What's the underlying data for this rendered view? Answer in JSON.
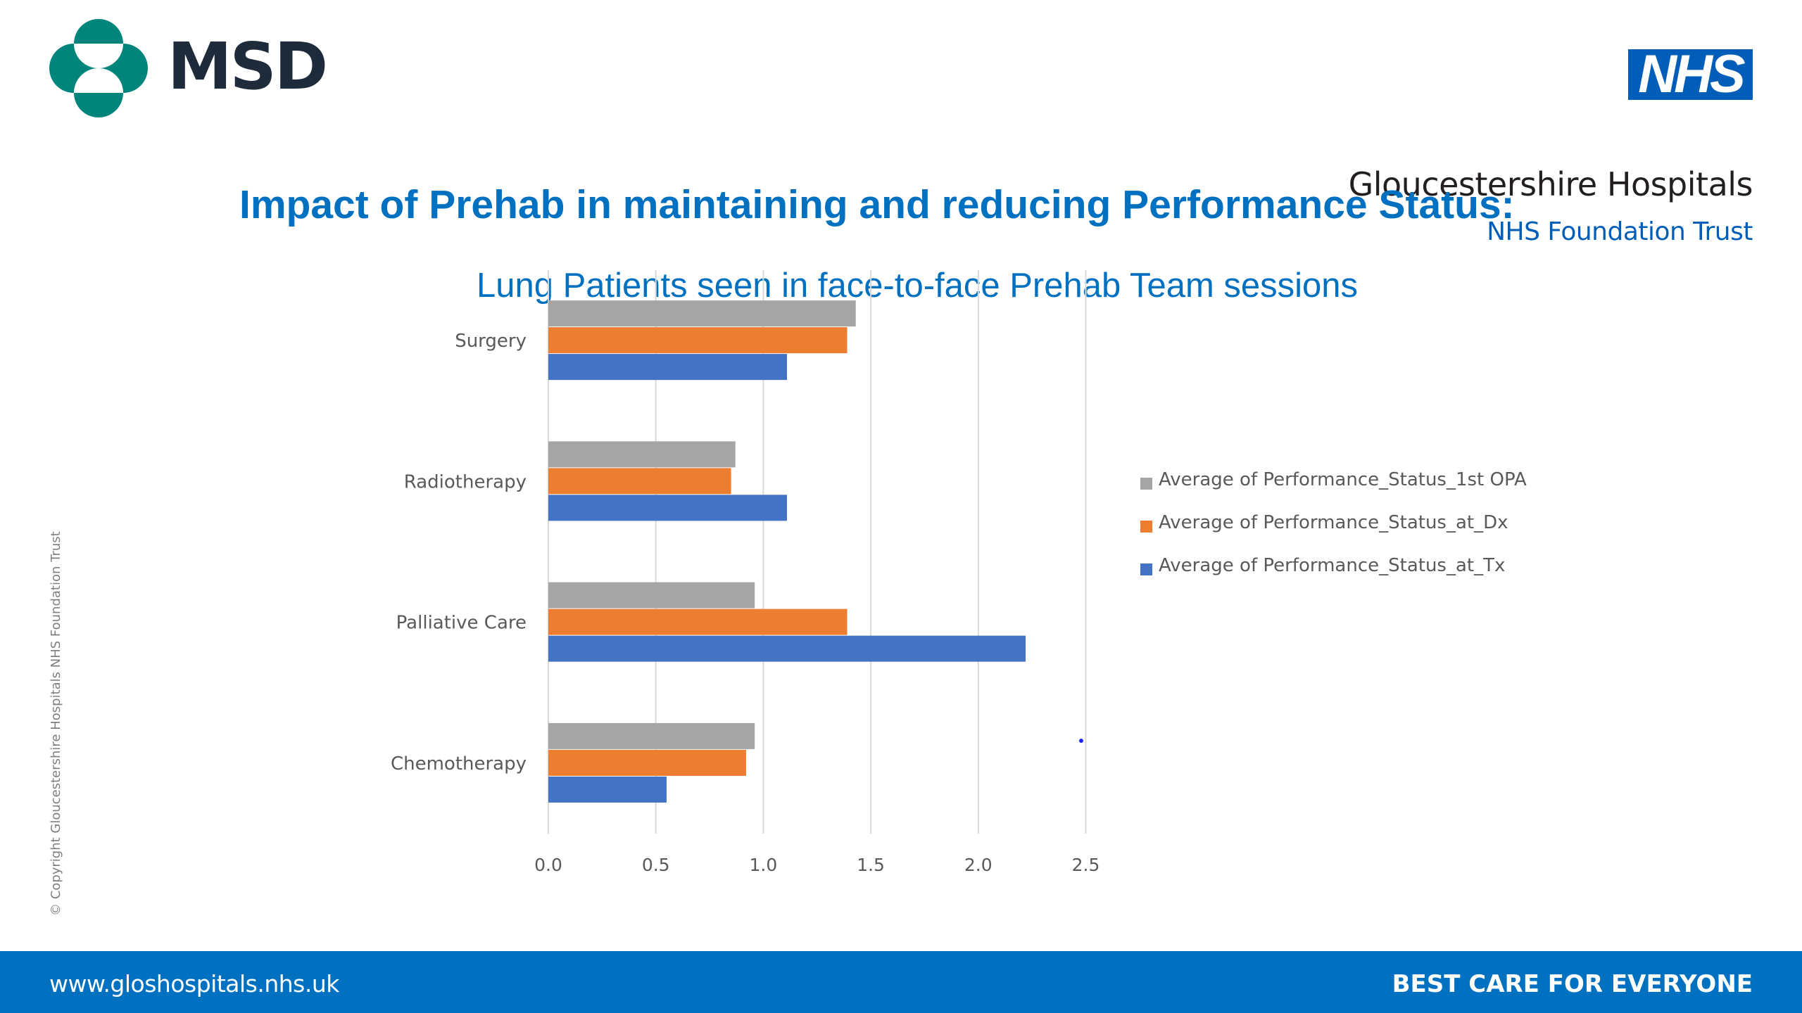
{
  "header": {
    "msd_logo_text": "MSD",
    "nhs_logo_text": "NHS",
    "org_name": "Gloucestershire Hospitals",
    "org_subtitle": "NHS Foundation Trust"
  },
  "title": "Impact of Prehab in maintaining and reducing Performance Status:",
  "subtitle": "Lung Patients seen in face-to-face Prehab Team sessions",
  "copyright": "© Copyright Gloucestershire Hospitals NHS Foundation Trust",
  "footer": {
    "url": "www.gloshospitals.nhs.uk",
    "tagline": "BEST CARE FOR EVERYONE"
  },
  "colors": {
    "msd_teal": "#00857c",
    "msd_navy": "#1e2b3b",
    "nhs_blue": "#005eb8",
    "title_blue": "#0070c0",
    "footer_blue": "#0070c0"
  },
  "chart_data": {
    "type": "bar",
    "orientation": "horizontal",
    "title": "",
    "xlabel": "",
    "ylabel": "",
    "categories": [
      "Surgery",
      "Radiotherapy",
      "Palliative Care",
      "Chemotherapy"
    ],
    "series": [
      {
        "name": "Average of Performance_Status_1st OPA",
        "color": "#a5a5a5",
        "values": [
          1.43,
          0.87,
          0.96,
          0.96
        ]
      },
      {
        "name": "Average of Performance_Status_at_Dx",
        "color": "#ed7d31",
        "values": [
          1.39,
          0.85,
          1.39,
          0.92
        ]
      },
      {
        "name": "Average of Performance_Status_at_Tx",
        "color": "#4472c4",
        "values": [
          1.11,
          1.11,
          2.22,
          0.55
        ]
      }
    ],
    "xlim": [
      0,
      2.5
    ],
    "xticks": [
      "0.0",
      "0.5",
      "1.0",
      "1.5",
      "2.0",
      "2.5"
    ],
    "grid": true,
    "legend_position": "right"
  }
}
